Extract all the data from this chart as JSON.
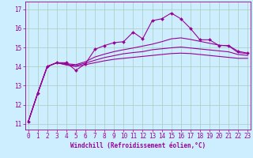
{
  "xlabel": "Windchill (Refroidissement éolien,°C)",
  "bg_color": "#cceeff",
  "grid_color": "#aaccbb",
  "line_color": "#990099",
  "x_ticks": [
    0,
    1,
    2,
    3,
    4,
    5,
    6,
    7,
    8,
    9,
    10,
    11,
    12,
    13,
    14,
    15,
    16,
    17,
    18,
    19,
    20,
    21,
    22,
    23
  ],
  "y_ticks": [
    11,
    12,
    13,
    14,
    15,
    16,
    17
  ],
  "ylim": [
    10.7,
    17.4
  ],
  "xlim": [
    -0.3,
    23.3
  ],
  "line1_x": [
    0,
    1,
    2,
    3,
    4,
    5,
    6,
    7,
    8,
    9,
    10,
    11,
    12,
    13,
    14,
    15,
    16,
    17,
    18,
    19,
    20,
    21,
    22,
    23
  ],
  "line1_y": [
    11.1,
    12.6,
    14.0,
    14.2,
    14.2,
    13.8,
    14.15,
    14.9,
    15.1,
    15.25,
    15.3,
    15.8,
    15.45,
    16.4,
    16.5,
    16.8,
    16.5,
    16.0,
    15.4,
    15.4,
    15.1,
    15.1,
    14.8,
    14.7
  ],
  "line2_x": [
    0,
    1,
    2,
    3,
    4,
    5,
    6,
    7,
    8,
    9,
    10,
    11,
    12,
    13,
    14,
    15,
    16,
    17,
    18,
    19,
    20,
    21,
    22,
    23
  ],
  "line2_y": [
    11.1,
    12.6,
    14.0,
    14.2,
    14.15,
    14.1,
    14.25,
    14.5,
    14.65,
    14.78,
    14.88,
    14.97,
    15.07,
    15.17,
    15.3,
    15.45,
    15.5,
    15.42,
    15.32,
    15.22,
    15.12,
    15.08,
    14.73,
    14.68
  ],
  "line3_x": [
    0,
    1,
    2,
    3,
    4,
    5,
    6,
    7,
    8,
    9,
    10,
    11,
    12,
    13,
    14,
    15,
    16,
    17,
    18,
    19,
    20,
    21,
    22,
    23
  ],
  "line3_y": [
    11.1,
    12.6,
    14.0,
    14.2,
    14.1,
    14.05,
    14.18,
    14.33,
    14.47,
    14.57,
    14.67,
    14.73,
    14.78,
    14.88,
    14.93,
    14.98,
    15.02,
    14.97,
    14.92,
    14.87,
    14.82,
    14.77,
    14.63,
    14.58
  ],
  "line4_x": [
    0,
    1,
    2,
    3,
    4,
    5,
    6,
    7,
    8,
    9,
    10,
    11,
    12,
    13,
    14,
    15,
    16,
    17,
    18,
    19,
    20,
    21,
    22,
    23
  ],
  "line4_y": [
    11.1,
    12.6,
    14.0,
    14.2,
    14.08,
    14.0,
    14.1,
    14.2,
    14.3,
    14.38,
    14.43,
    14.48,
    14.53,
    14.58,
    14.63,
    14.68,
    14.7,
    14.68,
    14.63,
    14.58,
    14.53,
    14.48,
    14.43,
    14.43
  ],
  "tick_fontsize": 5.5,
  "xlabel_fontsize": 5.5,
  "linewidth": 0.8,
  "markersize": 2.0
}
